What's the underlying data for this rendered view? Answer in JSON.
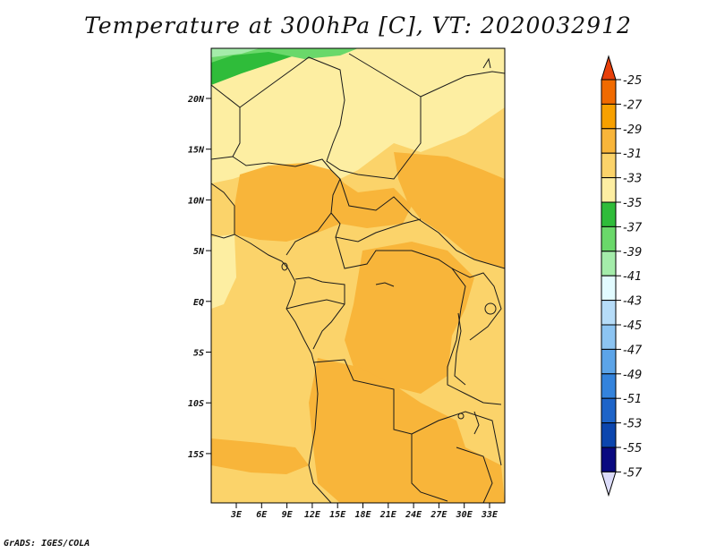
{
  "title": "Temperature at 300hPa [C], VT: 2020032912",
  "credit": "GrADS: IGES/COLA",
  "map": {
    "lat_labels": [
      "20N",
      "15N",
      "10N",
      "5N",
      "EQ",
      "5S",
      "10S",
      "15S"
    ],
    "lon_labels": [
      "3E",
      "6E",
      "9E",
      "12E",
      "15E",
      "18E",
      "21E",
      "24E",
      "27E",
      "30E",
      "33E"
    ]
  },
  "colorbar": {
    "labels": [
      "-25",
      "-27",
      "-29",
      "-31",
      "-33",
      "-35",
      "-37",
      "-39",
      "-41",
      "-43",
      "-45",
      "-47",
      "-49",
      "-51",
      "-53",
      "-55",
      "-57"
    ],
    "colors": [
      "#e8400a",
      "#f06a00",
      "#f7a000",
      "#f8b53a",
      "#fbd36a",
      "#fdeea2",
      "#2fbc3a",
      "#6ad86a",
      "#a4ecaa",
      "#e2fbff",
      "#b6dcf8",
      "#8cc4f2",
      "#5ca4e8",
      "#3483dc",
      "#1e64c8",
      "#0c46ae",
      "#0a0a80",
      "#dcdcfa"
    ]
  },
  "icons": [
    "up-triangle-icon",
    "down-triangle-icon"
  ]
}
